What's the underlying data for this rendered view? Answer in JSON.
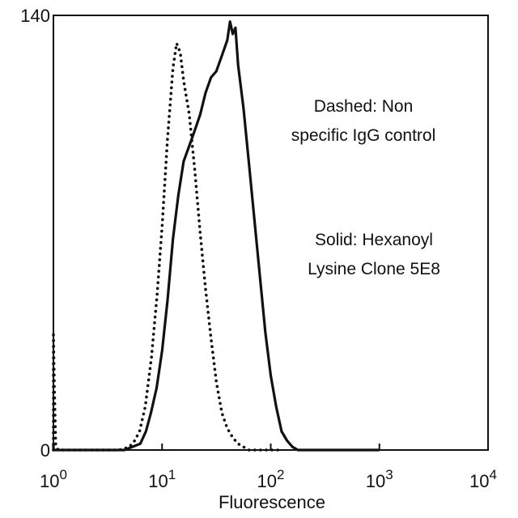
{
  "chart_data": {
    "type": "line",
    "title": "",
    "xlabel": "Fluorescence",
    "ylabel": "",
    "x_scale": "log",
    "xlim": [
      1,
      10000
    ],
    "ylim": [
      0,
      140
    ],
    "grid": false,
    "x_ticks": [
      {
        "value": 1,
        "base": "10",
        "exp": "0"
      },
      {
        "value": 10,
        "base": "10",
        "exp": "1"
      },
      {
        "value": 100,
        "base": "10",
        "exp": "2"
      },
      {
        "value": 1000,
        "base": "10",
        "exp": "3"
      },
      {
        "value": 10000,
        "base": "10",
        "exp": "4"
      }
    ],
    "y_ticks": [
      {
        "value": 0,
        "label": "0"
      },
      {
        "value": 140,
        "label": "140"
      }
    ],
    "annotations": [
      {
        "lines": [
          "Dashed: Non",
          "specific IgG control"
        ]
      },
      {
        "lines": [
          "Solid: Hexanoyl",
          "Lysine Clone 5E8"
        ]
      }
    ],
    "series": [
      {
        "style": "dotted",
        "color": "#111111",
        "points": [
          [
            1.0,
            0
          ],
          [
            1.0,
            38
          ],
          [
            1.02,
            20
          ],
          [
            1.05,
            2
          ],
          [
            1.1,
            0
          ],
          [
            4.0,
            0
          ],
          [
            5.0,
            1
          ],
          [
            5.6,
            3
          ],
          [
            6.2,
            6
          ],
          [
            7.0,
            14
          ],
          [
            8.0,
            30
          ],
          [
            9.0,
            50
          ],
          [
            10.0,
            72
          ],
          [
            11.2,
            100
          ],
          [
            12.6,
            123
          ],
          [
            13.6,
            131
          ],
          [
            14.7,
            128
          ],
          [
            15.8,
            119
          ],
          [
            17.8,
            108
          ],
          [
            20.0,
            90
          ],
          [
            22.4,
            70
          ],
          [
            25.1,
            52
          ],
          [
            28.2,
            36
          ],
          [
            31.6,
            22
          ],
          [
            35.5,
            12
          ],
          [
            39.8,
            7
          ],
          [
            44.7,
            4
          ],
          [
            50.1,
            2
          ],
          [
            56.2,
            1
          ],
          [
            63.1,
            0
          ],
          [
            120,
            0
          ]
        ]
      },
      {
        "style": "solid",
        "color": "#111111",
        "points": [
          [
            1.0,
            2
          ],
          [
            1.0,
            0
          ],
          [
            4.5,
            0
          ],
          [
            6.3,
            2
          ],
          [
            7.1,
            6
          ],
          [
            7.9,
            12
          ],
          [
            8.9,
            20
          ],
          [
            10.0,
            32
          ],
          [
            11.2,
            48
          ],
          [
            12.6,
            68
          ],
          [
            14.1,
            82
          ],
          [
            15.8,
            93
          ],
          [
            17.8,
            98
          ],
          [
            20.0,
            103
          ],
          [
            22.4,
            108
          ],
          [
            25.1,
            115
          ],
          [
            28.2,
            120
          ],
          [
            31.6,
            122
          ],
          [
            35.5,
            127
          ],
          [
            39.8,
            132
          ],
          [
            42.2,
            138
          ],
          [
            44.7,
            134
          ],
          [
            47.3,
            136
          ],
          [
            50.1,
            124
          ],
          [
            56.2,
            110
          ],
          [
            63.1,
            92
          ],
          [
            70.8,
            74
          ],
          [
            79.4,
            56
          ],
          [
            89.1,
            38
          ],
          [
            100.0,
            24
          ],
          [
            112.2,
            14
          ],
          [
            125.9,
            6
          ],
          [
            141.3,
            3
          ],
          [
            158.5,
            1
          ],
          [
            177.8,
            0
          ],
          [
            1000,
            0
          ]
        ]
      }
    ]
  }
}
